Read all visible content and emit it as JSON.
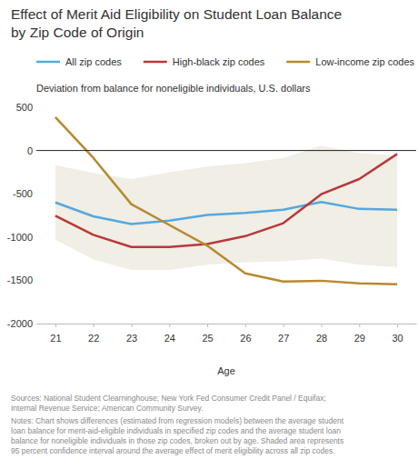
{
  "chart_data": {
    "type": "line",
    "title": [
      "Effect of Merit Aid Eligibility on Student Loan Balance",
      "by Zip Code of Origin"
    ],
    "subtitle": "Deviation from balance for noneligible individuals, U.S. dollars",
    "x_label": "Age",
    "x": [
      21,
      22,
      23,
      24,
      25,
      26,
      27,
      28,
      29,
      30
    ],
    "xlim": [
      20.5,
      30.5
    ],
    "xticks": [
      21,
      22,
      23,
      24,
      25,
      26,
      27,
      28,
      29,
      30
    ],
    "ylim": [
      -2000,
      500
    ],
    "yticks": [
      -2000,
      -1500,
      -1000,
      -500,
      0,
      500
    ],
    "grid": false,
    "legend": "top",
    "series": [
      {
        "name": "All zip codes",
        "color": "#55a8de",
        "values": [
          -600,
          -760,
          -850,
          -810,
          -745,
          -720,
          -685,
          -595,
          -675,
          -685
        ]
      },
      {
        "name": "High-black zip codes",
        "color": "#b9383a",
        "values": [
          -755,
          -975,
          -1115,
          -1115,
          -1080,
          -990,
          -840,
          -505,
          -330,
          -40
        ]
      },
      {
        "name": "Low-income zip codes",
        "color": "#b8892e",
        "values": [
          385,
          -85,
          -620,
          -860,
          -1100,
          -1420,
          -1515,
          -1505,
          -1535,
          -1545
        ]
      }
    ],
    "confidence_interval": {
      "lower": [
        -1030,
        -1260,
        -1380,
        -1380,
        -1320,
        -1290,
        -1280,
        -1250,
        -1320,
        -1350
      ],
      "upper": [
        -170,
        -260,
        -330,
        -250,
        -185,
        -145,
        -85,
        55,
        -30,
        -60
      ],
      "color": "#f0eee5"
    },
    "sources": [
      "Sources: National Student Clearninghouse; New York Fed Consumer Credit Panel / Equifax;",
      "Internal Revenue Service; American Community Survey."
    ],
    "notes": [
      "Notes: Chart shows differences (estimated from regression models) between the average student",
      "loan balance for merit-aid-eligible individuals in specified zip codes and the average student loan",
      "balance for noneligible individuals in those zip codes, broken out by age. Shaded area represents",
      "95 percent confidence interval around the average effect of merit eligibility across all zip codes."
    ]
  }
}
